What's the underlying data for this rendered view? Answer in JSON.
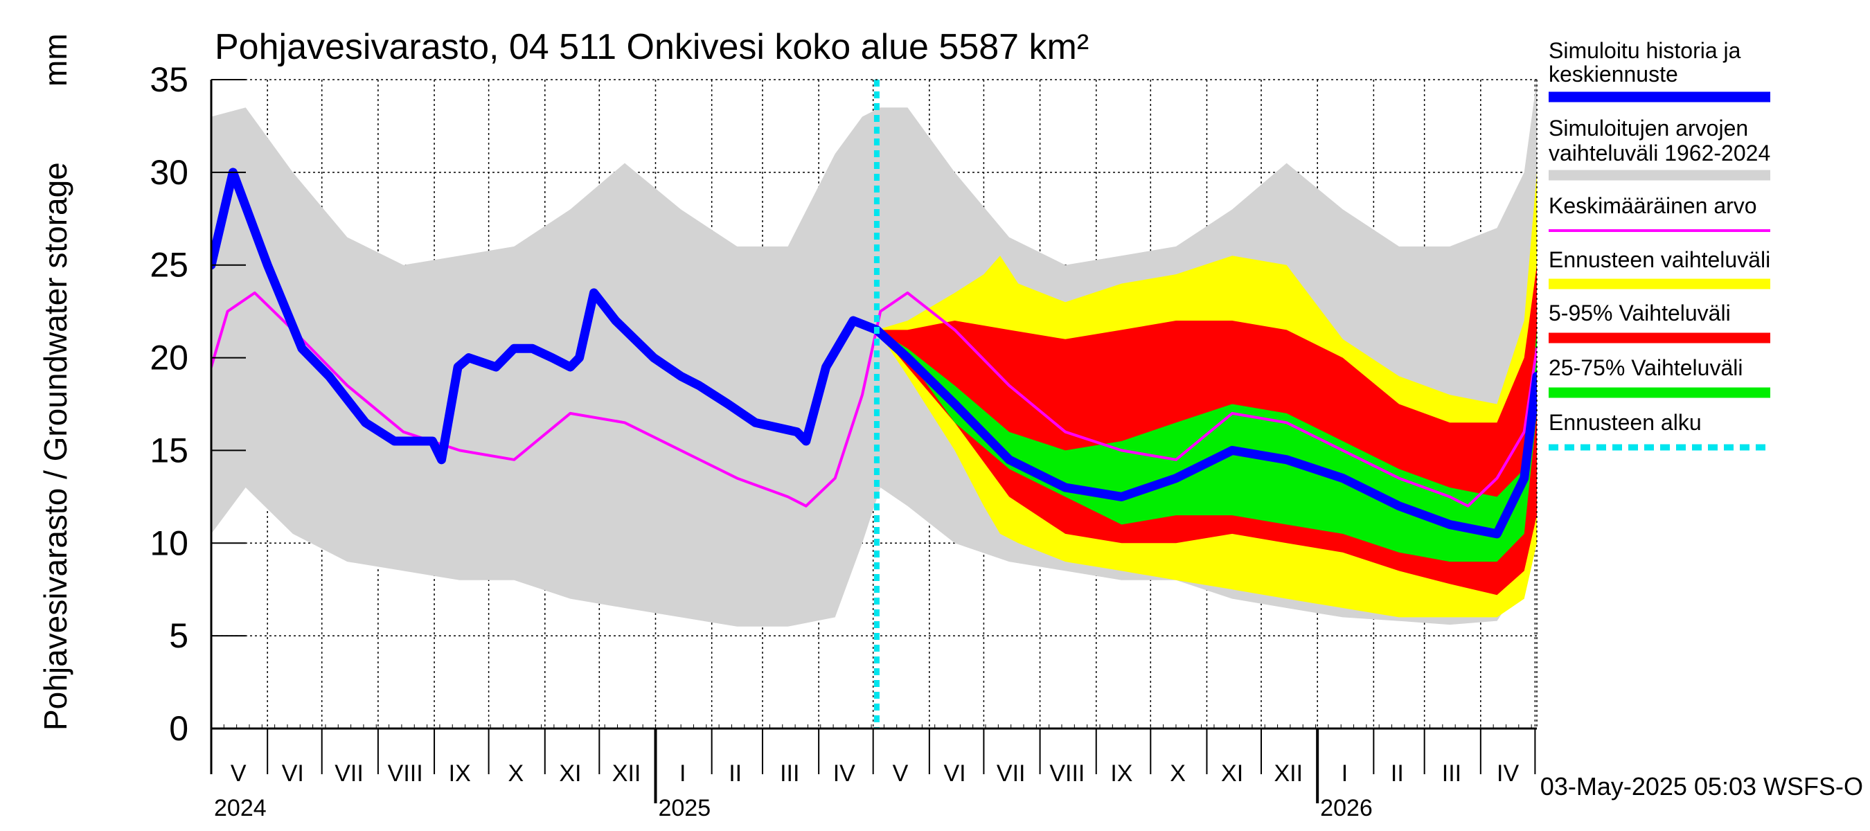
{
  "chart_data": {
    "type": "area",
    "title": "Pohjavesivarasto, 04 511 Onkivesi koko alue 5587 km²",
    "ylabel": "Pohjavesivarasto / Groundwater storage",
    "yunit": "mm",
    "ylim": [
      0,
      35
    ],
    "yticks": [
      0,
      5,
      10,
      15,
      20,
      25,
      30,
      35
    ],
    "xlim": [
      "2024-05-01",
      "2026-05-02"
    ],
    "forecast_start": "2025-05-03",
    "timestamp": "03-May-2025 05:03 WSFS-O",
    "grid": true,
    "month_labels": [
      {
        "label": "V",
        "date": "2024-05-16"
      },
      {
        "label": "VI",
        "date": "2024-06-15"
      },
      {
        "label": "VII",
        "date": "2024-07-16"
      },
      {
        "label": "VIII",
        "date": "2024-08-16"
      },
      {
        "label": "IX",
        "date": "2024-09-15"
      },
      {
        "label": "X",
        "date": "2024-10-16"
      },
      {
        "label": "XI",
        "date": "2024-11-15"
      },
      {
        "label": "XII",
        "date": "2024-12-16"
      },
      {
        "label": "I",
        "date": "2025-01-16"
      },
      {
        "label": "II",
        "date": "2025-02-14"
      },
      {
        "label": "III",
        "date": "2025-03-16"
      },
      {
        "label": "IV",
        "date": "2025-04-15"
      },
      {
        "label": "V",
        "date": "2025-05-16"
      },
      {
        "label": "VI",
        "date": "2025-06-15"
      },
      {
        "label": "VII",
        "date": "2025-07-16"
      },
      {
        "label": "VIII",
        "date": "2025-08-16"
      },
      {
        "label": "IX",
        "date": "2025-09-15"
      },
      {
        "label": "X",
        "date": "2025-10-16"
      },
      {
        "label": "XI",
        "date": "2025-11-15"
      },
      {
        "label": "XII",
        "date": "2025-12-16"
      },
      {
        "label": "I",
        "date": "2026-01-16"
      },
      {
        "label": "II",
        "date": "2026-02-14"
      },
      {
        "label": "III",
        "date": "2026-03-16"
      },
      {
        "label": "IV",
        "date": "2026-04-16"
      }
    ],
    "year_labels": [
      {
        "label": "2024",
        "date": "2024-05-01"
      },
      {
        "label": "2025",
        "date": "2025-01-01"
      },
      {
        "label": "2026",
        "date": "2026-01-01"
      }
    ],
    "legend": [
      {
        "label": "Simuloitu historia ja keskiennuste",
        "color": "#0000ff",
        "style": "thick"
      },
      {
        "label": "Simuloitujen arvojen vaihteluväli 1962-2024",
        "color": "#d3d3d3",
        "style": "thick"
      },
      {
        "label": "Keskimääräinen arvo",
        "color": "#ff00ff",
        "style": "thin"
      },
      {
        "label": "Ennusteen vaihteluväli",
        "color": "#ffff00",
        "style": "thick"
      },
      {
        "label": "5-95% Vaihteluväli",
        "color": "#ff0000",
        "style": "thick"
      },
      {
        "label": "25-75% Vaihteluväli",
        "color": "#00ee00",
        "style": "thick"
      },
      {
        "label": "Ennusteen alku",
        "color": "#00e5ee",
        "style": "dashed"
      }
    ],
    "history_range": {
      "name": "Simuloitujen arvojen vaihteluväli 1962-2024",
      "color": "#d3d3d3",
      "x": [
        "2024-05-01",
        "2024-05-20",
        "2024-06-15",
        "2024-07-15",
        "2024-08-15",
        "2024-09-15",
        "2024-10-15",
        "2024-11-15",
        "2024-12-15",
        "2025-01-15",
        "2025-02-15",
        "2025-03-15",
        "2025-04-10",
        "2025-04-25",
        "2025-05-05",
        "2025-05-20",
        "2025-06-15",
        "2025-07-15",
        "2025-08-15",
        "2025-09-15",
        "2025-10-15",
        "2025-11-15",
        "2025-12-15",
        "2026-01-15",
        "2026-02-15",
        "2026-03-15",
        "2026-04-10",
        "2026-04-25",
        "2026-05-02"
      ],
      "upper": [
        33,
        33.5,
        30,
        26.5,
        25,
        25.5,
        26,
        28,
        30.5,
        28,
        26,
        26,
        31,
        33,
        33.5,
        33.5,
        30,
        26.5,
        25,
        25.5,
        26,
        28,
        30.5,
        28,
        26,
        26,
        27,
        30,
        35
      ],
      "lower": [
        10.5,
        13,
        10.5,
        9,
        8.5,
        8,
        8,
        7,
        6.5,
        6,
        5.5,
        5.5,
        6,
        10,
        13,
        12,
        10,
        9,
        8.5,
        8,
        8,
        7,
        6.5,
        6,
        5.8,
        5.6,
        5.8,
        8,
        10.5
      ]
    },
    "forecast_full": {
      "name": "Ennusteen vaihteluväli",
      "color": "#ffff00",
      "x": [
        "2025-05-03",
        "2025-05-20",
        "2025-06-15",
        "2025-07-01",
        "2025-07-10",
        "2025-07-20",
        "2025-08-15",
        "2025-09-15",
        "2025-10-15",
        "2025-11-15",
        "2025-12-15",
        "2026-01-15",
        "2026-02-15",
        "2026-03-15",
        "2026-04-10",
        "2026-04-25",
        "2026-05-02"
      ],
      "upper": [
        21.5,
        22,
        23.5,
        24.5,
        25.5,
        24,
        23,
        24,
        24.5,
        25.5,
        25,
        21,
        19,
        18,
        17.5,
        22,
        30
      ],
      "lower": [
        21.5,
        19,
        15,
        12,
        10.5,
        10,
        9,
        8.5,
        8,
        7.5,
        7,
        6.5,
        6,
        6,
        6,
        7,
        10
      ]
    },
    "forecast_p5_95": {
      "name": "5-95% Vaihteluväli",
      "color": "#ff0000",
      "x": [
        "2025-05-03",
        "2025-05-20",
        "2025-06-15",
        "2025-07-15",
        "2025-08-15",
        "2025-09-15",
        "2025-10-15",
        "2025-11-15",
        "2025-12-15",
        "2026-01-15",
        "2026-02-15",
        "2026-03-15",
        "2026-04-10",
        "2026-04-25",
        "2026-05-02"
      ],
      "upper": [
        21.5,
        21.5,
        22,
        21.5,
        21,
        21.5,
        22,
        22,
        21.5,
        20,
        17.5,
        16.5,
        16.5,
        20,
        25
      ],
      "lower": [
        21.5,
        19.5,
        16.5,
        12.5,
        10.5,
        10,
        10,
        10.5,
        10,
        9.5,
        8.5,
        7.8,
        7.2,
        8.5,
        11.5
      ]
    },
    "forecast_p25_75": {
      "name": "25-75% Vaihteluväli",
      "color": "#00ee00",
      "x": [
        "2025-05-03",
        "2025-05-20",
        "2025-06-15",
        "2025-07-15",
        "2025-08-15",
        "2025-09-15",
        "2025-10-15",
        "2025-11-15",
        "2025-12-15",
        "2026-01-15",
        "2026-02-15",
        "2026-03-15",
        "2026-04-10",
        "2026-04-25",
        "2026-05-02"
      ],
      "upper": [
        21.5,
        20.5,
        18.5,
        16,
        15,
        15.5,
        16.5,
        17.5,
        17,
        15.5,
        14,
        13,
        12.5,
        14,
        21.5
      ],
      "lower": [
        21.5,
        20,
        16.5,
        14,
        12.5,
        11,
        11.5,
        11.5,
        11,
        10.5,
        9.5,
        9,
        9,
        10.5,
        17
      ]
    },
    "mean": {
      "name": "Keskimääräinen arvo",
      "color": "#ff00ff",
      "x": [
        "2024-05-01",
        "2024-05-10",
        "2024-05-25",
        "2024-06-15",
        "2024-07-15",
        "2024-08-15",
        "2024-09-15",
        "2024-10-15",
        "2024-11-15",
        "2024-12-15",
        "2025-01-15",
        "2025-02-15",
        "2025-03-15",
        "2025-03-25",
        "2025-04-10",
        "2025-04-25",
        "2025-05-05",
        "2025-05-20",
        "2025-06-15",
        "2025-07-15",
        "2025-08-15",
        "2025-09-15",
        "2025-10-15",
        "2025-11-15",
        "2025-12-15",
        "2026-01-15",
        "2026-02-15",
        "2026-03-15",
        "2026-03-25",
        "2026-04-10",
        "2026-04-25",
        "2026-05-02"
      ],
      "y": [
        19.5,
        22.5,
        23.5,
        21.5,
        18.5,
        16,
        15,
        14.5,
        17,
        16.5,
        15,
        13.5,
        12.5,
        12,
        13.5,
        18,
        22.5,
        23.5,
        21.5,
        18.5,
        16,
        15,
        14.5,
        17,
        16.5,
        15,
        13.5,
        12.5,
        12,
        13.5,
        16,
        20.5
      ]
    },
    "simulated": {
      "name": "Simuloitu historia ja keskiennuste",
      "color": "#0000ff",
      "x": [
        "2024-05-01",
        "2024-05-13",
        "2024-06-01",
        "2024-06-20",
        "2024-07-05",
        "2024-07-25",
        "2024-08-10",
        "2024-08-31",
        "2024-09-05",
        "2024-09-14",
        "2024-09-20",
        "2024-10-05",
        "2024-10-15",
        "2024-10-25",
        "2024-11-05",
        "2024-11-15",
        "2024-11-20",
        "2024-11-28",
        "2024-12-10",
        "2024-12-31",
        "2025-01-15",
        "2025-01-25",
        "2025-02-10",
        "2025-02-25",
        "2025-03-20",
        "2025-03-25",
        "2025-04-05",
        "2025-04-20",
        "2025-05-03",
        "2025-05-20",
        "2025-06-15",
        "2025-07-15",
        "2025-08-15",
        "2025-09-15",
        "2025-10-15",
        "2025-11-15",
        "2025-12-15",
        "2026-01-15",
        "2026-02-15",
        "2026-03-15",
        "2026-04-10",
        "2026-04-25",
        "2026-05-02"
      ],
      "y": [
        25,
        30,
        25,
        20.5,
        19,
        16.5,
        15.5,
        15.5,
        14.5,
        19.5,
        20,
        19.5,
        20.5,
        20.5,
        20,
        19.5,
        20,
        23.5,
        22,
        20,
        19,
        18.5,
        17.5,
        16.5,
        16,
        15.5,
        19.5,
        22,
        21.5,
        20,
        17.5,
        14.5,
        13,
        12.5,
        13.5,
        15,
        14.5,
        13.5,
        12,
        11,
        10.5,
        13.5,
        19
      ]
    }
  }
}
